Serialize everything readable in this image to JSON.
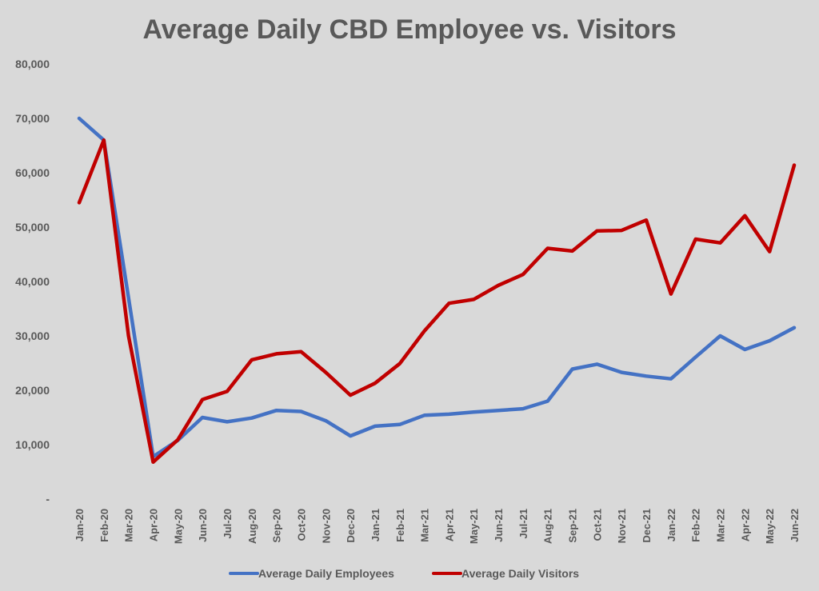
{
  "chart_data": {
    "type": "line",
    "title": "Average Daily CBD Employee vs. Visitors",
    "xlabel": "",
    "ylabel": "",
    "ylim": [
      0,
      80000
    ],
    "y_ticks": [
      0,
      10000,
      20000,
      30000,
      40000,
      50000,
      60000,
      70000,
      80000
    ],
    "y_tick_labels": [
      "-",
      "10,000",
      "20,000",
      "30,000",
      "40,000",
      "50,000",
      "60,000",
      "70,000",
      "80,000"
    ],
    "grid": false,
    "legend_position": "bottom",
    "categories": [
      "Jan-20",
      "Feb-20",
      "Mar-20",
      "Apr-20",
      "May-20",
      "Jun-20",
      "Jul-20",
      "Aug-20",
      "Sep-20",
      "Oct-20",
      "Nov-20",
      "Dec-20",
      "Jan-21",
      "Feb-21",
      "Mar-21",
      "Apr-21",
      "May-21",
      "Jun-21",
      "Jul-21",
      "Aug-21",
      "Sep-21",
      "Oct-21",
      "Nov-21",
      "Dec-21",
      "Jan-22",
      "Feb-22",
      "Mar-22",
      "Apr-22",
      "May-22",
      "Jun-22"
    ],
    "series": [
      {
        "name": "Average Daily Employees",
        "color": "#4472c4",
        "values": [
          70000,
          66000,
          37000,
          7800,
          10800,
          15000,
          14200,
          14900,
          16300,
          16100,
          14400,
          11600,
          13400,
          13700,
          15400,
          15600,
          16000,
          16300,
          16600,
          18000,
          23900,
          24800,
          23300,
          22600,
          22100,
          26100,
          30000,
          27500,
          29100,
          31500
        ]
      },
      {
        "name": "Average Daily Visitors",
        "color": "#c00000",
        "values": [
          54500,
          66000,
          30000,
          6800,
          10900,
          18300,
          19800,
          25600,
          26700,
          27100,
          23300,
          19100,
          21300,
          24900,
          30900,
          36000,
          36700,
          39300,
          41300,
          46100,
          45600,
          49300,
          49400,
          51300,
          37700,
          47800,
          47100,
          52100,
          45500,
          61400
        ]
      }
    ]
  }
}
